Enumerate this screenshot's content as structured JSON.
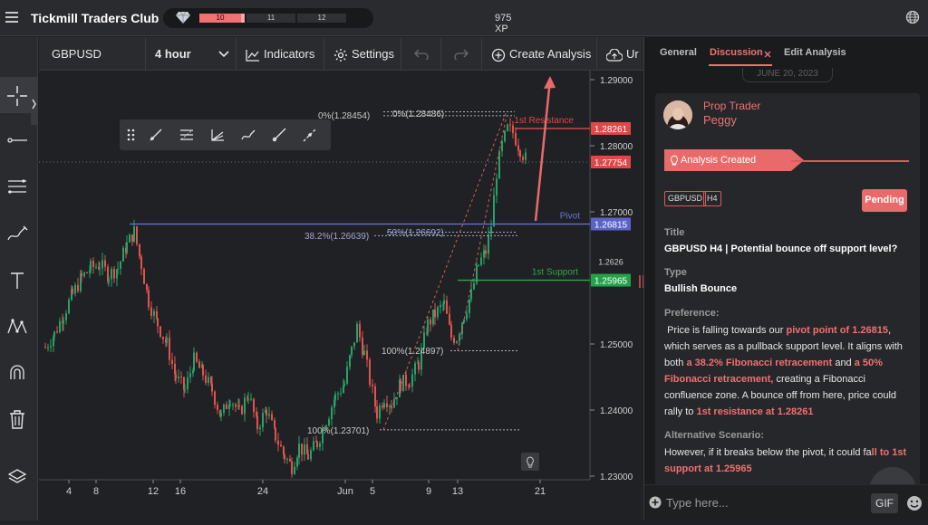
{
  "app": {
    "brand": "Tickmill Traders Club",
    "xp_segments": [
      "10",
      "11",
      "12"
    ],
    "xp": "975 XP"
  },
  "chart_toolbar": {
    "symbol": "GBPUSD",
    "timeframe": "4 hour",
    "indicators": "Indicators",
    "settings": "Settings",
    "create_analysis": "Create Analysis",
    "cut_off": "Ur"
  },
  "chart_data": {
    "type": "candlestick",
    "symbol": "GBPUSD",
    "timeframe": "4 hour",
    "price_axis": [
      "1.29000",
      "1.28000",
      "1.27000",
      "1.25000",
      "1.24000",
      "1.23000"
    ],
    "ylim": [
      1.229,
      1.2905
    ],
    "date_ticks": [
      "4",
      "8",
      "12",
      "16",
      "24",
      "Jun",
      "5",
      "9",
      "13",
      "21"
    ],
    "price_tags": [
      {
        "value": "1.28261",
        "color": "#e04848"
      },
      {
        "value": "1.27754",
        "color": "#e04848"
      },
      {
        "value": "1.26815",
        "color": "#5c63c8"
      },
      {
        "value": "1.25965",
        "color": "#22a34a"
      }
    ],
    "partial_tag": "1.2626",
    "levels": [
      {
        "label": "1st Resistance",
        "price": 1.28261,
        "color": "#e04848"
      },
      {
        "label": "Pivot",
        "price": 1.26815,
        "color": "#6b72e0"
      },
      {
        "label": "1st Support",
        "price": 1.25965,
        "color": "#2ea84a"
      }
    ],
    "fib_labels": [
      {
        "text": "0%(1.28454)",
        "price": 1.28454
      },
      {
        "text": "0%(1.28486)",
        "price": 1.28486
      },
      {
        "text": "38.2%(1.26639)",
        "price": 1.26639
      },
      {
        "text": "50%(1.26692)",
        "price": 1.26692
      },
      {
        "text": "100%(1.24897)",
        "price": 1.24897
      },
      {
        "text": "100%(1.23701)",
        "price": 1.23701
      }
    ],
    "current_price": 1.27754
  },
  "panel": {
    "tabs": [
      "General",
      "Discussion",
      "Edit Analysis"
    ],
    "date_pill": "JUNE 20, 2023",
    "author_role": "Prop Trader",
    "author_name": "Peggy",
    "created_label": "Analysis Created",
    "tags": [
      "GBPUSD",
      "H4"
    ],
    "status": "Pending",
    "title_label": "Title",
    "title_value": "GBPUSD H4 | Potential bounce off support level?",
    "type_label": "Type",
    "type_value": "Bullish Bounce",
    "pref_label": "Preference:",
    "pref": {
      "t1": "Price is falling towards our ",
      "h1": "pivot point of 1.26815",
      "t2": ", which serves as a pullback support level. It aligns with both ",
      "h2": "a 38.2% Fibonacci retracement",
      "t3": " and ",
      "h3": "a 50% Fibonacci retracement,",
      "t4": " creating a Fibonacci confluence zone. A bounce off from here, price could rally to ",
      "h4": "1st resistance at 1.28261"
    },
    "alt_label": "Alternative Scenario:",
    "alt": {
      "t1": "However, if it breaks below the pivot, it could fa",
      "h1": "ll to 1st",
      "h2": "support at 1.25965"
    },
    "composer_placeholder": "Type here...",
    "gif": "GIF",
    "accent": "#f07171"
  }
}
